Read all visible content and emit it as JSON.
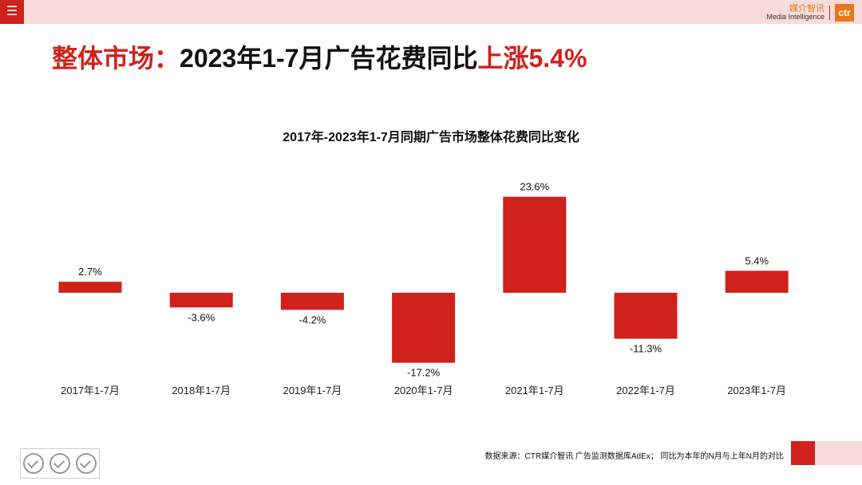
{
  "header": {
    "menu_icon": "hamburger-icon",
    "brand_cn": "媒介智讯",
    "brand_en": "Media Intelligence",
    "brand_logo": "ctr"
  },
  "headline": {
    "part1": "整体市场：",
    "part2": "2023年1-7月广告花费同比",
    "part3": "上涨5.4%"
  },
  "colors": {
    "accent": "#d0211c",
    "pink": "#f8dcdc",
    "brand_orange": "#e8761a"
  },
  "chart_data": {
    "type": "bar",
    "title": "2017年-2023年1-7月同期广告市场整体花费同比变化",
    "categories": [
      "2017年1-7月",
      "2018年1-7月",
      "2019年1-7月",
      "2020年1-7月",
      "2021年1-7月",
      "2022年1-7月",
      "2023年1-7月"
    ],
    "values": [
      2.7,
      -3.6,
      -4.2,
      -17.2,
      23.6,
      -11.3,
      5.4
    ],
    "labels": [
      "2.7%",
      "-3.6%",
      "-4.2%",
      "-17.2%",
      "23.6%",
      "-11.3%",
      "5.4%"
    ],
    "unit": "%",
    "xlabel": "",
    "ylabel": "",
    "grid": false
  },
  "footer": {
    "source": "数据来源：CTR媒介智讯 广告监测数据库AdEx；  同比为本年的N月与上年N月的对比",
    "badge_icon": "sgs-certification-icon"
  }
}
